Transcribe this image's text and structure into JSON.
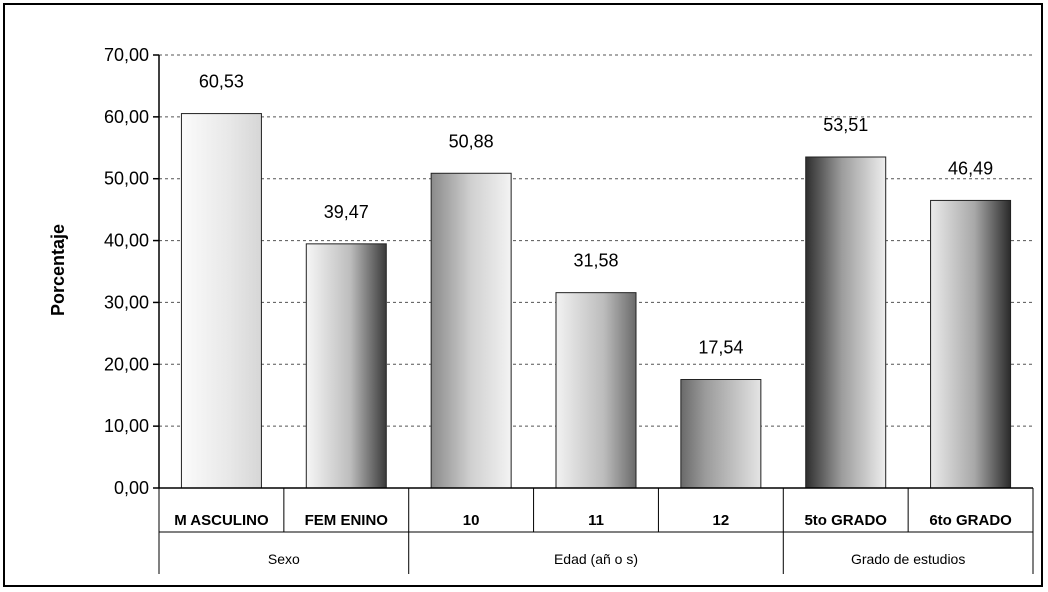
{
  "chart_data": {
    "type": "bar",
    "ylabel": "Porcentaje",
    "ylim": [
      0,
      70
    ],
    "yticks": [
      "0,00",
      "10,00",
      "20,00",
      "30,00",
      "40,00",
      "50,00",
      "60,00",
      "70,00"
    ],
    "grid": true,
    "categories": [
      "M ASCULINO",
      "FEM ENINO",
      "10",
      "11",
      "12",
      "5to GRADO",
      "6to GRADO"
    ],
    "values": [
      60.53,
      39.47,
      50.88,
      31.58,
      17.54,
      53.51,
      46.49
    ],
    "value_labels": [
      "60,53",
      "39,47",
      "50,88",
      "31,58",
      "17,54",
      "53,51",
      "46,49"
    ],
    "groups": [
      {
        "label": "Sexo",
        "span": 2
      },
      {
        "label": "Edad (añ o s)",
        "span": 3
      },
      {
        "label": "Grado de estudios",
        "span": 2
      }
    ]
  },
  "colors": {
    "grid": "#555555",
    "bar_edge": "#222222",
    "bar_light": "#ffffff",
    "bar_dark": "#2a2a2a"
  }
}
